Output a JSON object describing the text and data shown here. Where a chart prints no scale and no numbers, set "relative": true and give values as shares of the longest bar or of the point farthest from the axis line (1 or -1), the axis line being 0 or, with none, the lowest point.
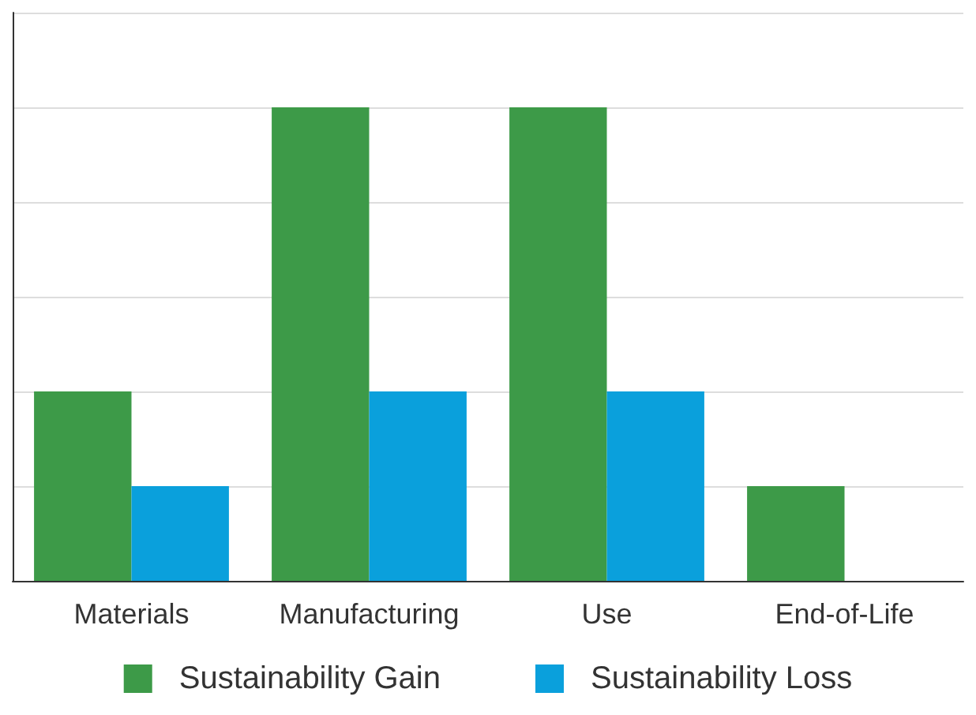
{
  "chart_data": {
    "type": "bar",
    "relative": true,
    "grid": "y",
    "legend": "bottom",
    "categories": [
      "Materials",
      "Manufacturing",
      "Use",
      "End-of-Life"
    ],
    "series": [
      {
        "name": "Sustainability Gain",
        "color": "#3d9a48",
        "values": [
          0.4,
          1,
          1,
          0.2
        ]
      },
      {
        "name": "Sustainability Loss",
        "color": "#0aa0dc",
        "values": [
          0.2,
          0.4,
          0.4,
          0
        ]
      }
    ]
  }
}
